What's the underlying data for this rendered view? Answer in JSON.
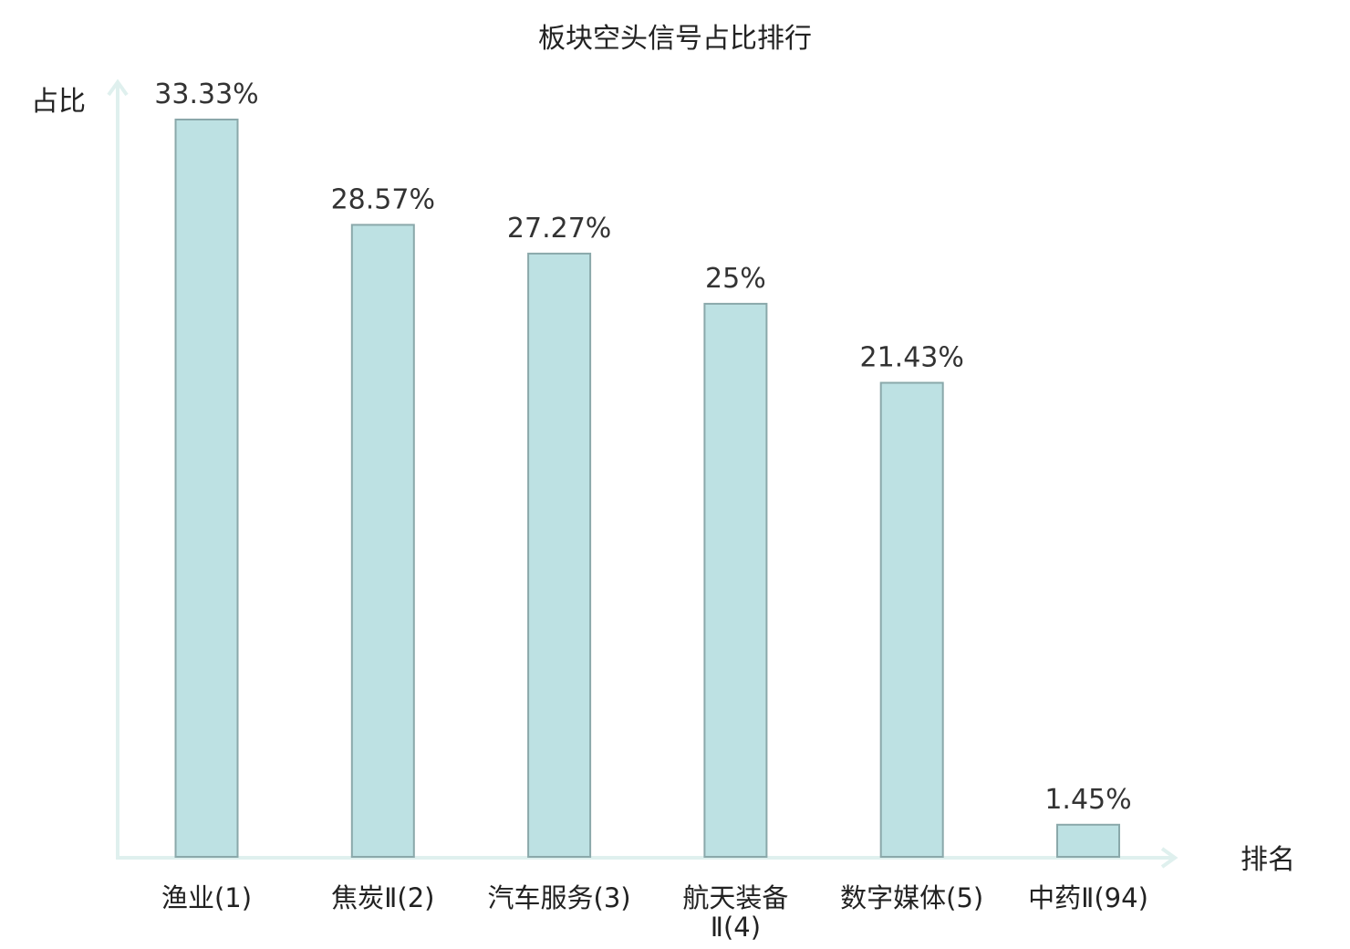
{
  "chart_data": {
    "type": "bar",
    "title": "板块空头信号占比排行",
    "ylabel": "占比",
    "xlabel": "排名",
    "categories": [
      [
        "渔业(1)"
      ],
      [
        "焦炭Ⅱ(2)"
      ],
      [
        "汽车服务(3)"
      ],
      [
        "航天装备",
        "Ⅱ(4)"
      ],
      [
        "数字媒体(5)"
      ],
      [
        "中药Ⅱ(94)"
      ]
    ],
    "values": [
      33.33,
      28.57,
      27.27,
      25,
      21.43,
      1.45
    ],
    "value_labels": [
      "33.33%",
      "28.57%",
      "27.27%",
      "25%",
      "21.43%",
      "1.45%"
    ],
    "highlight_index": 5,
    "ylim": [
      0,
      33.33
    ],
    "grid": false,
    "colors": {
      "bar_fill": "#bde1e3",
      "bar_stroke": "#8aa8aa",
      "axis": "#dff0ee",
      "highlight_text": "#e02020",
      "text": "#222222"
    }
  }
}
